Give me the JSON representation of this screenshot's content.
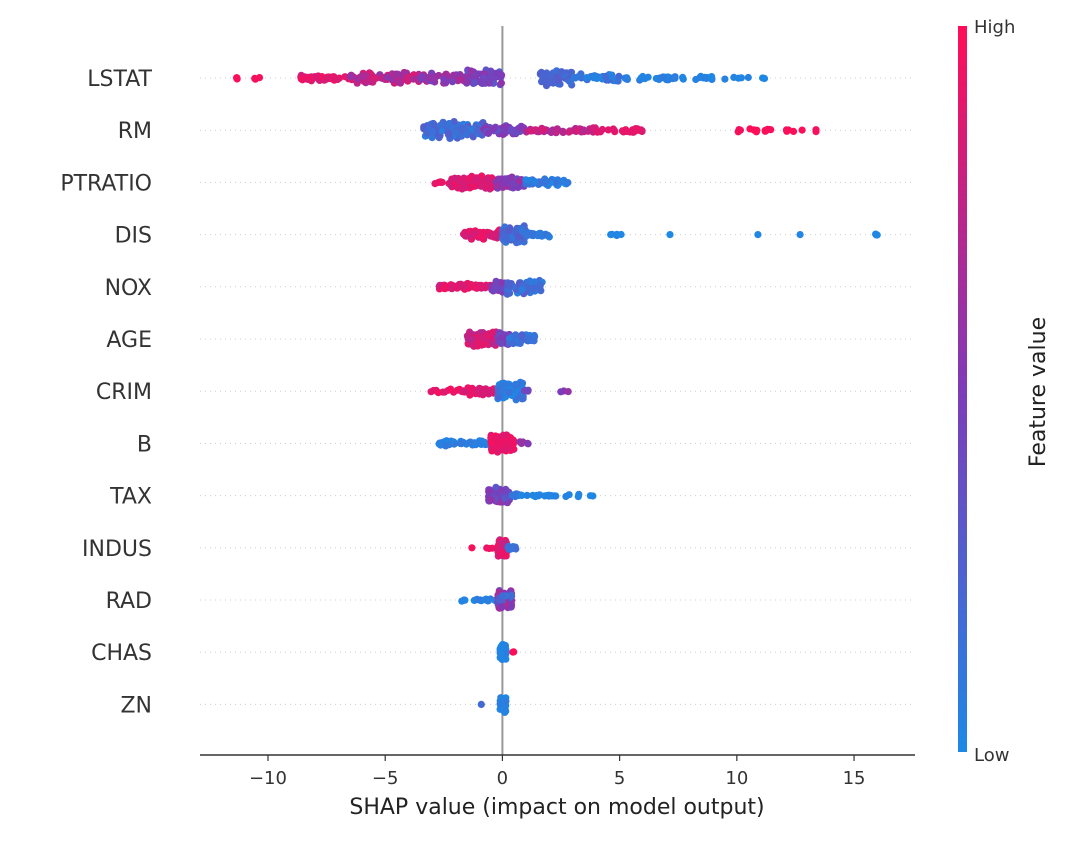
{
  "chart_data": {
    "type": "scatter",
    "subtype": "shap-beeswarm",
    "title": "",
    "xlabel": "SHAP value (impact on model output)",
    "xlim": [
      -12.9,
      17.6
    ],
    "x_ticks": [
      -10,
      -5,
      0,
      5,
      10,
      15
    ],
    "x_tick_labels": [
      "−10",
      "−5",
      "0",
      "5",
      "10",
      "15"
    ],
    "features": [
      "LSTAT",
      "RM",
      "PTRATIO",
      "DIS",
      "NOX",
      "AGE",
      "CRIM",
      "B",
      "TAX",
      "INDUS",
      "RAD",
      "CHAS",
      "ZN"
    ],
    "colorbar": {
      "label": "Feature value",
      "high_label": "High",
      "low_label": "Low",
      "high_color": "#ff0d57",
      "mid_color": "#7e3bb8",
      "low_color": "#1e88e5"
    },
    "clusters": [
      {
        "feature": "LSTAT",
        "segments": [
          {
            "range": [
              -11.6,
              -11.2
            ],
            "n": 3,
            "fv": [
              0.98,
              1.0
            ],
            "spread": 0.08
          },
          {
            "range": [
              -10.6,
              -10.3
            ],
            "n": 3,
            "fv": [
              0.95,
              1.0
            ],
            "spread": 0.08
          },
          {
            "range": [
              -8.8,
              -6.5
            ],
            "n": 40,
            "fv": [
              0.8,
              0.95
            ],
            "spread": 0.16
          },
          {
            "range": [
              -6.5,
              -3.5
            ],
            "n": 80,
            "fv": [
              0.55,
              0.9
            ],
            "spread": 0.3
          },
          {
            "range": [
              -3.5,
              -1.5
            ],
            "n": 55,
            "fv": [
              0.45,
              0.7
            ],
            "spread": 0.26
          },
          {
            "range": [
              -1.5,
              0.0
            ],
            "n": 70,
            "fv": [
              0.3,
              0.6
            ],
            "spread": 0.42
          },
          {
            "range": [
              1.5,
              3.0
            ],
            "n": 45,
            "fv": [
              0.15,
              0.3
            ],
            "spread": 0.38
          },
          {
            "range": [
              3.0,
              5.0
            ],
            "n": 35,
            "fv": [
              0.02,
              0.2
            ],
            "spread": 0.2
          },
          {
            "range": [
              5.0,
              7.5
            ],
            "n": 25,
            "fv": [
              0.0,
              0.1
            ],
            "spread": 0.14
          },
          {
            "range": [
              7.5,
              9.5
            ],
            "n": 12,
            "fv": [
              0.0,
              0.06
            ],
            "spread": 0.1
          },
          {
            "range": [
              9.5,
              11.6
            ],
            "n": 6,
            "fv": [
              0.0,
              0.04
            ],
            "spread": 0.06
          }
        ]
      },
      {
        "feature": "RM",
        "segments": [
          {
            "range": [
              -3.4,
              -0.8
            ],
            "n": 120,
            "fv": [
              0.05,
              0.3
            ],
            "spread": 0.42
          },
          {
            "range": [
              -0.8,
              1.0
            ],
            "n": 60,
            "fv": [
              0.3,
              0.55
            ],
            "spread": 0.22
          },
          {
            "range": [
              1.0,
              4.0
            ],
            "n": 50,
            "fv": [
              0.65,
              0.85
            ],
            "spread": 0.14
          },
          {
            "range": [
              4.0,
              6.0
            ],
            "n": 25,
            "fv": [
              0.85,
              0.95
            ],
            "spread": 0.12
          },
          {
            "range": [
              10.0,
              11.5
            ],
            "n": 14,
            "fv": [
              0.95,
              1.0
            ],
            "spread": 0.1
          },
          {
            "range": [
              12.0,
              13.6
            ],
            "n": 7,
            "fv": [
              0.95,
              1.0
            ],
            "spread": 0.08
          }
        ]
      },
      {
        "feature": "PTRATIO",
        "segments": [
          {
            "range": [
              -2.9,
              -2.2
            ],
            "n": 8,
            "fv": [
              0.85,
              0.95
            ],
            "spread": 0.08
          },
          {
            "range": [
              -2.2,
              -0.3
            ],
            "n": 120,
            "fv": [
              0.8,
              0.95
            ],
            "spread": 0.34
          },
          {
            "range": [
              -0.3,
              1.0
            ],
            "n": 45,
            "fv": [
              0.4,
              0.65
            ],
            "spread": 0.3
          },
          {
            "range": [
              1.0,
              2.8
            ],
            "n": 40,
            "fv": [
              0.0,
              0.15
            ],
            "spread": 0.2
          }
        ]
      },
      {
        "feature": "DIS",
        "segments": [
          {
            "range": [
              -1.7,
              0.0
            ],
            "n": 70,
            "fv": [
              0.75,
              0.95
            ],
            "spread": 0.24
          },
          {
            "range": [
              0.0,
              1.0
            ],
            "n": 90,
            "fv": [
              0.1,
              0.3
            ],
            "spread": 0.42
          },
          {
            "range": [
              1.0,
              2.0
            ],
            "n": 25,
            "fv": [
              0.05,
              0.15
            ],
            "spread": 0.14
          },
          {
            "range": [
              2.5,
              5.2
            ],
            "n": 5,
            "fv": [
              0.0,
              0.05
            ],
            "spread": 0.06
          },
          {
            "range": [
              7.0,
              7.3
            ],
            "n": 1,
            "fv": [
              0.0,
              0.02
            ],
            "spread": 0.0
          },
          {
            "range": [
              10.9,
              10.9
            ],
            "n": 1,
            "fv": [
              0.0,
              0.02
            ],
            "spread": 0.0
          },
          {
            "range": [
              12.7,
              12.7
            ],
            "n": 1,
            "fv": [
              0.0,
              0.02
            ],
            "spread": 0.0
          },
          {
            "range": [
              15.9,
              16.2
            ],
            "n": 3,
            "fv": [
              0.0,
              0.02
            ],
            "spread": 0.04
          }
        ]
      },
      {
        "feature": "NOX",
        "segments": [
          {
            "range": [
              -2.7,
              -0.5
            ],
            "n": 60,
            "fv": [
              0.8,
              0.95
            ],
            "spread": 0.18
          },
          {
            "range": [
              -0.5,
              0.2
            ],
            "n": 40,
            "fv": [
              0.4,
              0.6
            ],
            "spread": 0.28
          },
          {
            "range": [
              0.2,
              1.7
            ],
            "n": 60,
            "fv": [
              0.05,
              0.3
            ],
            "spread": 0.36
          }
        ]
      },
      {
        "feature": "AGE",
        "segments": [
          {
            "range": [
              -1.5,
              -0.2
            ],
            "n": 90,
            "fv": [
              0.7,
              0.95
            ],
            "spread": 0.42
          },
          {
            "range": [
              -0.2,
              0.3
            ],
            "n": 30,
            "fv": [
              0.35,
              0.55
            ],
            "spread": 0.3
          },
          {
            "range": [
              0.3,
              1.4
            ],
            "n": 50,
            "fv": [
              0.05,
              0.25
            ],
            "spread": 0.28
          }
        ]
      },
      {
        "feature": "CRIM",
        "segments": [
          {
            "range": [
              -3.1,
              -1.6
            ],
            "n": 14,
            "fv": [
              0.85,
              0.98
            ],
            "spread": 0.12
          },
          {
            "range": [
              -1.6,
              -0.2
            ],
            "n": 50,
            "fv": [
              0.8,
              0.95
            ],
            "spread": 0.22
          },
          {
            "range": [
              -0.2,
              0.9
            ],
            "n": 110,
            "fv": [
              0.0,
              0.2
            ],
            "spread": 0.46
          },
          {
            "range": [
              0.9,
              1.1
            ],
            "n": 3,
            "fv": [
              0.4,
              0.55
            ],
            "spread": 0.06
          },
          {
            "range": [
              2.3,
              2.9
            ],
            "n": 3,
            "fv": [
              0.45,
              0.6
            ],
            "spread": 0.1
          }
        ]
      },
      {
        "feature": "B",
        "segments": [
          {
            "range": [
              -2.8,
              -0.6
            ],
            "n": 45,
            "fv": [
              0.0,
              0.1
            ],
            "spread": 0.16
          },
          {
            "range": [
              -0.5,
              0.5
            ],
            "n": 150,
            "fv": [
              0.85,
              1.0
            ],
            "spread": 0.44
          },
          {
            "range": [
              0.5,
              1.1
            ],
            "n": 6,
            "fv": [
              0.45,
              0.6
            ],
            "spread": 0.1
          }
        ]
      },
      {
        "feature": "TAX",
        "segments": [
          {
            "range": [
              -0.6,
              0.3
            ],
            "n": 110,
            "fv": [
              0.3,
              0.6
            ],
            "spread": 0.4
          },
          {
            "range": [
              0.3,
              0.8
            ],
            "n": 10,
            "fv": [
              0.05,
              0.15
            ],
            "spread": 0.12
          },
          {
            "range": [
              0.8,
              2.3
            ],
            "n": 15,
            "fv": [
              0.0,
              0.05
            ],
            "spread": 0.06
          },
          {
            "range": [
              2.4,
              4.2
            ],
            "n": 6,
            "fv": [
              0.0,
              0.05
            ],
            "spread": 0.06
          }
        ]
      },
      {
        "feature": "INDUS",
        "segments": [
          {
            "range": [
              -1.3,
              -1.3
            ],
            "n": 1,
            "fv": [
              0.97,
              1.0
            ],
            "spread": 0.0
          },
          {
            "range": [
              -0.7,
              -0.3
            ],
            "n": 3,
            "fv": [
              0.85,
              0.95
            ],
            "spread": 0.04
          },
          {
            "range": [
              -0.2,
              0.2
            ],
            "n": 80,
            "fv": [
              0.75,
              0.95
            ],
            "spread": 0.44
          },
          {
            "range": [
              0.2,
              0.6
            ],
            "n": 15,
            "fv": [
              0.05,
              0.2
            ],
            "spread": 0.12
          }
        ]
      },
      {
        "feature": "RAD",
        "segments": [
          {
            "range": [
              -1.9,
              -1.4
            ],
            "n": 4,
            "fv": [
              0.0,
              0.05
            ],
            "spread": 0.06
          },
          {
            "range": [
              -1.2,
              -0.2
            ],
            "n": 14,
            "fv": [
              0.0,
              0.1
            ],
            "spread": 0.1
          },
          {
            "range": [
              -0.2,
              0.4
            ],
            "n": 80,
            "fv": [
              0.1,
              0.9
            ],
            "spread": 0.44
          }
        ]
      },
      {
        "feature": "CHAS",
        "segments": [
          {
            "range": [
              -0.1,
              0.15
            ],
            "n": 60,
            "fv": [
              0.0,
              0.06
            ],
            "spread": 0.42
          },
          {
            "range": [
              0.35,
              0.5
            ],
            "n": 2,
            "fv": [
              0.95,
              1.0
            ],
            "spread": 0.04
          }
        ]
      },
      {
        "feature": "ZN",
        "segments": [
          {
            "range": [
              -0.1,
              0.15
            ],
            "n": 60,
            "fv": [
              0.0,
              0.08
            ],
            "spread": 0.42
          },
          {
            "range": [
              -0.9,
              -0.9
            ],
            "n": 1,
            "fv": [
              0.2,
              0.3
            ],
            "spread": 0.0
          }
        ]
      }
    ]
  }
}
